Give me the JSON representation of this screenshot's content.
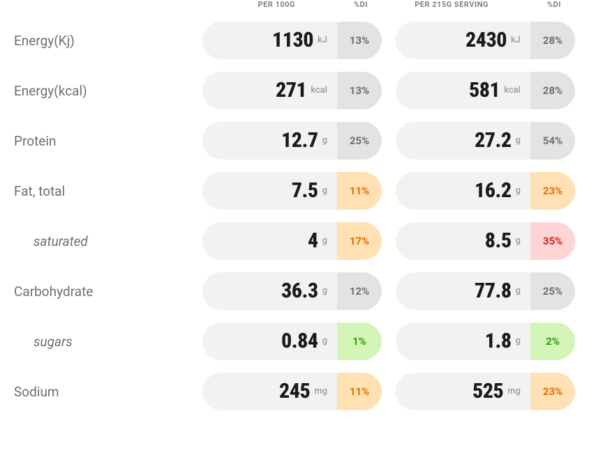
{
  "colors": {
    "background": "#ffffff",
    "pill_bg": "#f2f2f2",
    "label": "#6e6e6e",
    "value": "#1a1a1a",
    "unit": "#9a9a9a",
    "header": "#808080",
    "di_neutral_bg": "#e3e3e3",
    "di_neutral_fg": "#6e6e6e",
    "di_amber_bg": "#ffe1b3",
    "di_amber_fg": "#e96b00",
    "di_red_bg": "#ffd4d4",
    "di_red_fg": "#d62222",
    "di_green_bg": "#d3f5b8",
    "di_green_fg": "#2f9e00"
  },
  "headers": {
    "per100": "PER 100G",
    "perServing": "PER 215G SERVING",
    "di": "%DI"
  },
  "rows": [
    {
      "id": "energy-kj",
      "label": "Energy(Kj)",
      "indented": false,
      "per100": {
        "value": "1130",
        "unit": "kJ",
        "di": "13%",
        "di_class": "neutral"
      },
      "perServing": {
        "value": "2430",
        "unit": "kJ",
        "di": "28%",
        "di_class": "neutral"
      }
    },
    {
      "id": "energy-kcal",
      "label": "Energy(kcal)",
      "indented": false,
      "per100": {
        "value": "271",
        "unit": "kcal",
        "di": "13%",
        "di_class": "neutral"
      },
      "perServing": {
        "value": "581",
        "unit": "kcal",
        "di": "28%",
        "di_class": "neutral"
      }
    },
    {
      "id": "protein",
      "label": "Protein",
      "indented": false,
      "per100": {
        "value": "12.7",
        "unit": "g",
        "di": "25%",
        "di_class": "neutral"
      },
      "perServing": {
        "value": "27.2",
        "unit": "g",
        "di": "54%",
        "di_class": "neutral"
      }
    },
    {
      "id": "fat-total",
      "label": "Fat, total",
      "indented": false,
      "per100": {
        "value": "7.5",
        "unit": "g",
        "di": "11%",
        "di_class": "amber"
      },
      "perServing": {
        "value": "16.2",
        "unit": "g",
        "di": "23%",
        "di_class": "amber"
      }
    },
    {
      "id": "saturated",
      "label": "saturated",
      "indented": true,
      "per100": {
        "value": "4",
        "unit": "g",
        "di": "17%",
        "di_class": "amber"
      },
      "perServing": {
        "value": "8.5",
        "unit": "g",
        "di": "35%",
        "di_class": "red"
      }
    },
    {
      "id": "carbohydrate",
      "label": "Carbohydrate",
      "indented": false,
      "per100": {
        "value": "36.3",
        "unit": "g",
        "di": "12%",
        "di_class": "neutral"
      },
      "perServing": {
        "value": "77.8",
        "unit": "g",
        "di": "25%",
        "di_class": "neutral"
      }
    },
    {
      "id": "sugars",
      "label": "sugars",
      "indented": true,
      "per100": {
        "value": "0.84",
        "unit": "g",
        "di": "1%",
        "di_class": "green"
      },
      "perServing": {
        "value": "1.8",
        "unit": "g",
        "di": "2%",
        "di_class": "green"
      }
    },
    {
      "id": "sodium",
      "label": "Sodium",
      "indented": false,
      "per100": {
        "value": "245",
        "unit": "mg",
        "di": "11%",
        "di_class": "amber"
      },
      "perServing": {
        "value": "525",
        "unit": "mg",
        "di": "23%",
        "di_class": "amber"
      }
    }
  ]
}
